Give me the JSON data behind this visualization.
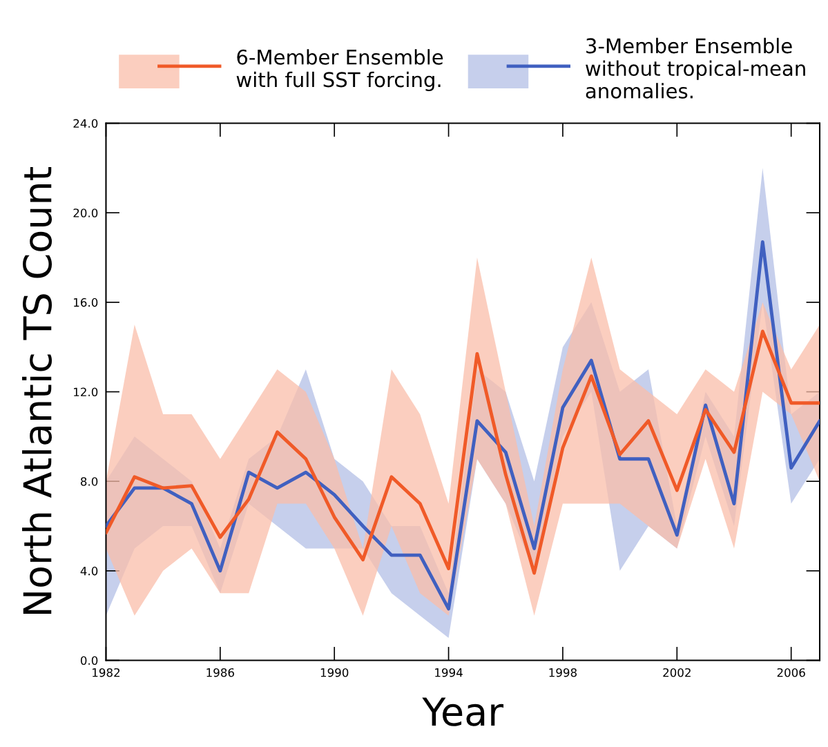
{
  "chart_data": {
    "type": "line",
    "xlabel": "Year",
    "ylabel": "North Atlantic TS Count",
    "x": [
      1982,
      1983,
      1984,
      1985,
      1986,
      1987,
      1988,
      1989,
      1990,
      1991,
      1992,
      1993,
      1994,
      1995,
      1996,
      1997,
      1998,
      1999,
      2000,
      2001,
      2002,
      2003,
      2004,
      2005,
      2006,
      2007
    ],
    "series": [
      {
        "name": "3-Member Ensemble\nwithout tropical-mean\nanomalies.",
        "color": "#4060c0",
        "values": [
          6.0,
          7.7,
          7.7,
          7.0,
          4.0,
          8.4,
          7.7,
          8.4,
          7.4,
          6.0,
          4.7,
          4.7,
          2.3,
          10.7,
          9.3,
          5.0,
          11.3,
          13.4,
          9.0,
          9.0,
          5.6,
          11.4,
          7.0,
          18.7,
          8.6,
          10.7
        ],
        "lower": [
          2,
          5,
          6,
          6,
          3,
          7,
          6,
          5,
          5,
          5,
          3,
          2,
          1,
          9,
          7,
          4,
          10,
          12,
          4,
          6,
          5,
          10,
          6,
          16,
          7,
          9
        ],
        "upper": [
          8,
          10,
          9,
          8,
          5,
          9,
          10,
          13,
          9,
          8,
          6,
          6,
          3,
          13,
          12,
          8,
          14,
          16,
          12,
          13,
          6,
          12,
          10,
          22,
          11,
          12
        ]
      },
      {
        "name": "6-Member Ensemble\nwith full SST forcing.",
        "color": "#f05a28",
        "values": [
          5.7,
          8.2,
          7.7,
          7.8,
          5.5,
          7.2,
          10.2,
          9.0,
          6.4,
          4.5,
          8.2,
          7.0,
          4.1,
          13.7,
          8.3,
          3.9,
          9.5,
          12.7,
          9.2,
          10.7,
          7.6,
          11.2,
          9.3,
          14.7,
          11.5,
          11.5
        ],
        "lower": [
          5,
          2,
          4,
          5,
          3,
          3,
          7,
          7,
          5,
          2,
          6,
          3,
          2,
          9,
          7,
          2,
          7,
          7,
          7,
          6,
          5,
          9,
          5,
          12,
          11,
          8
        ],
        "upper": [
          8,
          15,
          11,
          11,
          9,
          11,
          13,
          12,
          9,
          5,
          13,
          11,
          7,
          18,
          12,
          6,
          13,
          18,
          13,
          12,
          11,
          13,
          12,
          16,
          13,
          15
        ]
      }
    ],
    "xlim": [
      1982,
      2007
    ],
    "xticks": [
      1982,
      1986,
      1990,
      1994,
      1998,
      2002,
      2006
    ],
    "ylim": [
      0,
      24
    ],
    "yticks": [
      {
        "value": 0,
        "label": "0.0"
      },
      {
        "value": 4,
        "label": "4.0"
      },
      {
        "value": 8,
        "label": "8.0"
      },
      {
        "value": 12,
        "label": "12.0"
      },
      {
        "value": 16,
        "label": "16.0"
      },
      {
        "value": 20,
        "label": "20.0"
      },
      {
        "value": 24,
        "label": "24.0"
      }
    ],
    "grid": false,
    "legend": "top",
    "marker": "none",
    "line_style": "solid"
  }
}
